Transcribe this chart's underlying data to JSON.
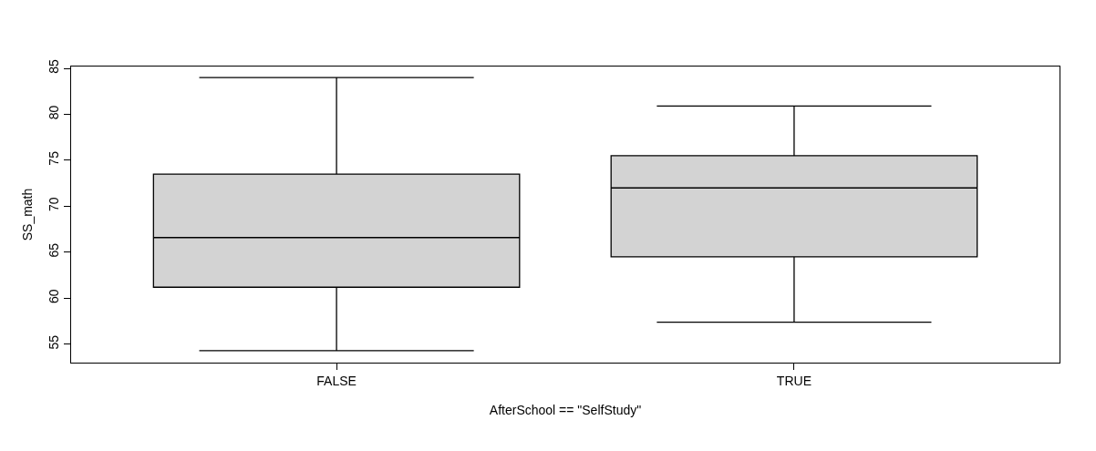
{
  "chart_data": {
    "type": "box",
    "xlabel": "AfterSchool == \"SelfStudy\"",
    "ylabel": "SS_math",
    "categories": [
      "FALSE",
      "TRUE"
    ],
    "boxes": [
      {
        "low": 54.3,
        "q1": 61.2,
        "median": 66.6,
        "q3": 73.5,
        "high": 84.0
      },
      {
        "low": 57.4,
        "q1": 64.5,
        "median": 72.0,
        "q3": 75.5,
        "high": 80.9
      }
    ],
    "color": "#d3d3d3",
    "ylim": [
      53.0,
      85.2
    ],
    "yticks": [
      55,
      60,
      65,
      70,
      75,
      80,
      85
    ]
  }
}
